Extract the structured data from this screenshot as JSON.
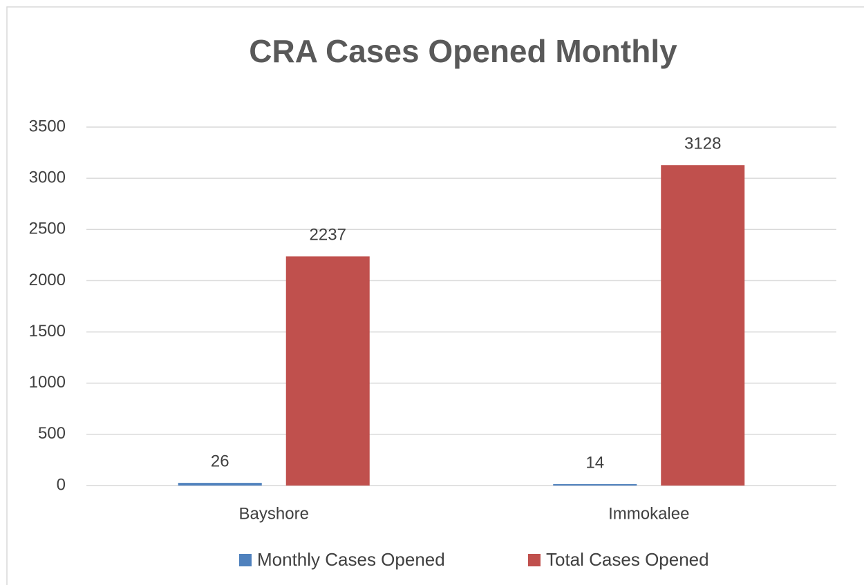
{
  "chart_data": {
    "type": "bar",
    "title": "CRA Cases Opened Monthly",
    "categories": [
      "Bayshore",
      "Immokalee"
    ],
    "series": [
      {
        "name": "Monthly Cases Opened",
        "color": "#4f81bd",
        "values": [
          26,
          14
        ]
      },
      {
        "name": "Total Cases Opened",
        "color": "#c0504d",
        "values": [
          2237,
          3128
        ]
      }
    ],
    "ylim": [
      0,
      3500
    ],
    "yticks": [
      0,
      500,
      1000,
      1500,
      2000,
      2500,
      3000,
      3500
    ],
    "grid": true,
    "legend": "bottom",
    "data_labels": true
  }
}
